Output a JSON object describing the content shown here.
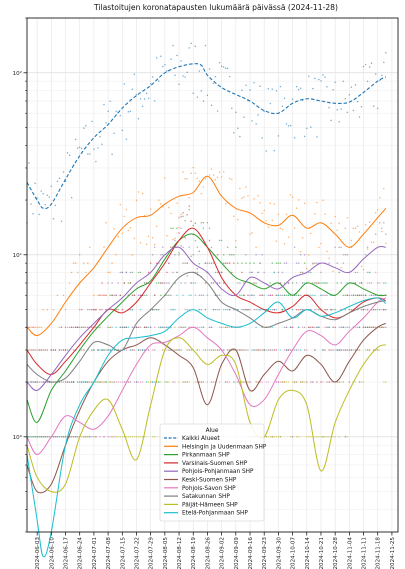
{
  "chart_data": {
    "type": "line",
    "title": "Tilastoitujen koronatapausten lukumäärä päivässä (2024-11-28)",
    "xlabel": "",
    "ylabel": "",
    "yscale": "log",
    "ylim": [
      0.3,
      200
    ],
    "y_ticks": [
      {
        "value": 1,
        "label": "10⁰"
      },
      {
        "value": 10,
        "label": "10¹"
      },
      {
        "value": 100,
        "label": "10²"
      }
    ],
    "xlim": [
      "2024-05-29",
      "2024-11-28"
    ],
    "x_ticks": [
      "2024-06-03",
      "2024-06-10",
      "2024-06-17",
      "2024-06-24",
      "2024-07-01",
      "2024-07-08",
      "2024-07-15",
      "2024-07-22",
      "2024-07-29",
      "2024-08-05",
      "2024-08-12",
      "2024-08-19",
      "2024-08-26",
      "2024-09-02",
      "2024-09-09",
      "2024-09-16",
      "2024-09-23",
      "2024-09-30",
      "2024-10-07",
      "2024-10-14",
      "2024-10-21",
      "2024-10-28",
      "2024-11-04",
      "2024-11-11",
      "2024-11-18",
      "2024-11-25"
    ],
    "grid": true,
    "legend": {
      "title": "Alue",
      "placement": "lower-center"
    },
    "series": [
      {
        "name": "Kaikki Alueet",
        "color": "#1f77b4",
        "dashed": true,
        "x": [
          "2024-05-29",
          "2024-06-03",
          "2024-06-06",
          "2024-06-10",
          "2024-06-17",
          "2024-06-24",
          "2024-07-01",
          "2024-07-08",
          "2024-07-15",
          "2024-07-22",
          "2024-07-29",
          "2024-08-05",
          "2024-08-12",
          "2024-08-19",
          "2024-08-23",
          "2024-08-26",
          "2024-09-02",
          "2024-09-09",
          "2024-09-16",
          "2024-09-23",
          "2024-09-30",
          "2024-10-07",
          "2024-10-14",
          "2024-10-21",
          "2024-10-28",
          "2024-11-04",
          "2024-11-11",
          "2024-11-18",
          "2024-11-22"
        ],
        "y": [
          25,
          20,
          18,
          19,
          26,
          35,
          44,
          52,
          64,
          75,
          85,
          100,
          108,
          112,
          110,
          97,
          83,
          76,
          70,
          62,
          60,
          68,
          72,
          70,
          68,
          69,
          78,
          90,
          95
        ]
      },
      {
        "name": "Helsingin ja Uudenmaan SHP",
        "color": "#ff7f0e",
        "dashed": false,
        "x": [
          "2024-05-29",
          "2024-06-03",
          "2024-06-10",
          "2024-06-17",
          "2024-06-24",
          "2024-07-01",
          "2024-07-08",
          "2024-07-15",
          "2024-07-22",
          "2024-07-29",
          "2024-08-05",
          "2024-08-12",
          "2024-08-19",
          "2024-08-26",
          "2024-09-02",
          "2024-09-09",
          "2024-09-16",
          "2024-09-23",
          "2024-09-30",
          "2024-10-07",
          "2024-10-14",
          "2024-10-21",
          "2024-10-28",
          "2024-11-04",
          "2024-11-11",
          "2024-11-18",
          "2024-11-22"
        ],
        "y": [
          4.0,
          3.6,
          4.2,
          5.5,
          7.0,
          8.5,
          11,
          14,
          16,
          16.5,
          19,
          21,
          22,
          27,
          21,
          18,
          17,
          15,
          14.5,
          16.5,
          14,
          15,
          13,
          11,
          13,
          16,
          18
        ]
      },
      {
        "name": "Pirkanmaan SHP",
        "color": "#2ca02c",
        "dashed": false,
        "x": [
          "2024-05-29",
          "2024-06-03",
          "2024-06-10",
          "2024-06-17",
          "2024-06-24",
          "2024-07-01",
          "2024-07-08",
          "2024-07-15",
          "2024-07-22",
          "2024-07-29",
          "2024-08-05",
          "2024-08-12",
          "2024-08-19",
          "2024-08-26",
          "2024-09-02",
          "2024-09-09",
          "2024-09-16",
          "2024-09-23",
          "2024-09-30",
          "2024-10-07",
          "2024-10-14",
          "2024-10-21",
          "2024-10-28",
          "2024-11-04",
          "2024-11-11",
          "2024-11-18",
          "2024-11-22"
        ],
        "y": [
          1.6,
          1.2,
          1.8,
          2.3,
          3.0,
          3.8,
          4.6,
          5.5,
          6.5,
          7.2,
          9.5,
          12,
          13,
          11,
          9.0,
          7.5,
          7.0,
          6.5,
          7.0,
          6.0,
          7.0,
          6.5,
          6.0,
          7.0,
          6.5,
          6.0,
          6.0
        ]
      },
      {
        "name": "Varsinais-Suomen SHP",
        "color": "#d62728",
        "dashed": false,
        "x": [
          "2024-05-29",
          "2024-06-03",
          "2024-06-10",
          "2024-06-17",
          "2024-06-24",
          "2024-07-01",
          "2024-07-08",
          "2024-07-15",
          "2024-07-22",
          "2024-07-29",
          "2024-08-05",
          "2024-08-12",
          "2024-08-19",
          "2024-08-26",
          "2024-09-02",
          "2024-09-09",
          "2024-09-16",
          "2024-09-23",
          "2024-09-30",
          "2024-10-07",
          "2024-10-14",
          "2024-10-21",
          "2024-10-28",
          "2024-11-04",
          "2024-11-11",
          "2024-11-18",
          "2024-11-22"
        ],
        "y": [
          3.0,
          2.5,
          2.2,
          2.6,
          3.2,
          4.0,
          5.0,
          4.8,
          5.5,
          7.0,
          9.0,
          12,
          14,
          11,
          7.5,
          6.0,
          5.5,
          5.0,
          4.8,
          5.2,
          6.0,
          5.0,
          4.5,
          4.8,
          5.5,
          5.8,
          5.6
        ]
      },
      {
        "name": "Pohjois-Pohjanmaan SHP",
        "color": "#9467bd",
        "dashed": false,
        "x": [
          "2024-05-29",
          "2024-06-03",
          "2024-06-10",
          "2024-06-17",
          "2024-06-24",
          "2024-07-01",
          "2024-07-08",
          "2024-07-15",
          "2024-07-22",
          "2024-07-29",
          "2024-08-05",
          "2024-08-12",
          "2024-08-19",
          "2024-08-26",
          "2024-09-02",
          "2024-09-09",
          "2024-09-16",
          "2024-09-23",
          "2024-09-30",
          "2024-10-07",
          "2024-10-14",
          "2024-10-21",
          "2024-10-28",
          "2024-11-04",
          "2024-11-11",
          "2024-11-18",
          "2024-11-22"
        ],
        "y": [
          2.0,
          1.8,
          2.2,
          2.8,
          3.5,
          4.2,
          5.0,
          5.8,
          7.0,
          8.0,
          10,
          11,
          9.0,
          8.0,
          6.5,
          6.0,
          7.5,
          7.0,
          6.5,
          7.5,
          8.0,
          9.0,
          8.5,
          8.0,
          9.5,
          11,
          11
        ]
      },
      {
        "name": "Keski-Suomen SHP",
        "color": "#8c564b",
        "dashed": false,
        "x": [
          "2024-05-29",
          "2024-06-03",
          "2024-06-10",
          "2024-06-17",
          "2024-06-24",
          "2024-07-01",
          "2024-07-08",
          "2024-07-15",
          "2024-07-22",
          "2024-07-29",
          "2024-08-05",
          "2024-08-12",
          "2024-08-19",
          "2024-08-26",
          "2024-09-02",
          "2024-09-09",
          "2024-09-16",
          "2024-09-23",
          "2024-09-30",
          "2024-10-07",
          "2024-10-14",
          "2024-10-21",
          "2024-10-28",
          "2024-11-04",
          "2024-11-11",
          "2024-11-18",
          "2024-11-22"
        ],
        "y": [
          0.7,
          0.5,
          0.55,
          0.9,
          1.4,
          2.0,
          2.6,
          3.0,
          3.2,
          3.5,
          3.2,
          2.8,
          2.4,
          1.5,
          2.5,
          3.0,
          1.8,
          2.2,
          2.6,
          2.3,
          2.8,
          2.5,
          2.0,
          2.6,
          3.4,
          4.0,
          4.2
        ]
      },
      {
        "name": "Pohjois-Savon SHP",
        "color": "#e377c2",
        "dashed": false,
        "x": [
          "2024-05-29",
          "2024-06-03",
          "2024-06-10",
          "2024-06-17",
          "2024-06-24",
          "2024-07-01",
          "2024-07-08",
          "2024-07-15",
          "2024-07-22",
          "2024-07-29",
          "2024-08-05",
          "2024-08-12",
          "2024-08-19",
          "2024-08-26",
          "2024-09-02",
          "2024-09-09",
          "2024-09-16",
          "2024-09-23",
          "2024-09-30",
          "2024-10-07",
          "2024-10-14",
          "2024-10-21",
          "2024-10-28",
          "2024-11-04",
          "2024-11-11",
          "2024-11-18",
          "2024-11-22"
        ],
        "y": [
          1.0,
          0.8,
          1.0,
          1.3,
          1.2,
          1.1,
          1.3,
          1.8,
          2.5,
          3.2,
          3.3,
          3.6,
          4.0,
          3.5,
          3.0,
          2.2,
          1.5,
          1.6,
          2.2,
          3.0,
          3.8,
          3.6,
          3.2,
          3.8,
          4.5,
          5.5,
          5.8
        ]
      },
      {
        "name": "Satakunnan SHP",
        "color": "#7f7f7f",
        "dashed": false,
        "x": [
          "2024-05-29",
          "2024-06-03",
          "2024-06-10",
          "2024-06-17",
          "2024-06-24",
          "2024-07-01",
          "2024-07-08",
          "2024-07-15",
          "2024-07-22",
          "2024-07-29",
          "2024-08-05",
          "2024-08-12",
          "2024-08-19",
          "2024-08-26",
          "2024-09-02",
          "2024-09-09",
          "2024-09-16",
          "2024-09-23",
          "2024-09-30",
          "2024-10-07",
          "2024-10-14",
          "2024-10-21",
          "2024-10-28",
          "2024-11-04",
          "2024-11-11",
          "2024-11-18",
          "2024-11-22"
        ],
        "y": [
          2.5,
          2.2,
          2.0,
          2.1,
          2.6,
          3.3,
          3.2,
          3.0,
          4.2,
          5.0,
          6.0,
          7.5,
          8.0,
          7.0,
          5.5,
          5.0,
          4.5,
          4.0,
          4.2,
          4.5,
          5.0,
          4.6,
          4.4,
          4.8,
          5.2,
          5.5,
          5.6
        ]
      },
      {
        "name": "Päijät-Hämeen SHP",
        "color": "#bcbd22",
        "dashed": false,
        "x": [
          "2024-05-29",
          "2024-06-03",
          "2024-06-10",
          "2024-06-17",
          "2024-06-24",
          "2024-07-01",
          "2024-07-08",
          "2024-07-15",
          "2024-07-22",
          "2024-07-29",
          "2024-08-05",
          "2024-08-12",
          "2024-08-19",
          "2024-08-26",
          "2024-09-02",
          "2024-09-09",
          "2024-09-16",
          "2024-09-23",
          "2024-09-30",
          "2024-10-07",
          "2024-10-14",
          "2024-10-21",
          "2024-10-28",
          "2024-11-04",
          "2024-11-11",
          "2024-11-18",
          "2024-11-22"
        ],
        "y": [
          0.9,
          0.6,
          0.5,
          0.55,
          1.0,
          1.4,
          1.6,
          1.1,
          0.75,
          1.5,
          3.0,
          3.5,
          3.0,
          2.5,
          2.8,
          2.5,
          1.2,
          1.0,
          1.6,
          1.8,
          1.5,
          0.65,
          1.2,
          1.8,
          2.5,
          3.1,
          3.2
        ]
      },
      {
        "name": "Etelä-Pohjanmaan SHP",
        "color": "#17becf",
        "dashed": false,
        "x": [
          "2024-05-29",
          "2024-06-03",
          "2024-06-06",
          "2024-06-10",
          "2024-06-17",
          "2024-06-24",
          "2024-07-01",
          "2024-07-08",
          "2024-07-15",
          "2024-07-22",
          "2024-07-29",
          "2024-08-05",
          "2024-08-12",
          "2024-08-19",
          "2024-08-26",
          "2024-09-02",
          "2024-09-09",
          "2024-09-16",
          "2024-09-23",
          "2024-09-30",
          "2024-10-07",
          "2024-10-14",
          "2024-10-21",
          "2024-10-28",
          "2024-11-04",
          "2024-11-11",
          "2024-11-18",
          "2024-11-22"
        ],
        "y": [
          0.8,
          0.35,
          0.22,
          0.3,
          0.9,
          1.5,
          2.0,
          2.8,
          3.4,
          3.5,
          3.6,
          3.8,
          4.5,
          5.0,
          4.5,
          4.2,
          4.0,
          4.2,
          4.8,
          5.5,
          4.5,
          5.0,
          4.6,
          4.8,
          5.2,
          5.6,
          5.8,
          5.4
        ]
      }
    ]
  }
}
